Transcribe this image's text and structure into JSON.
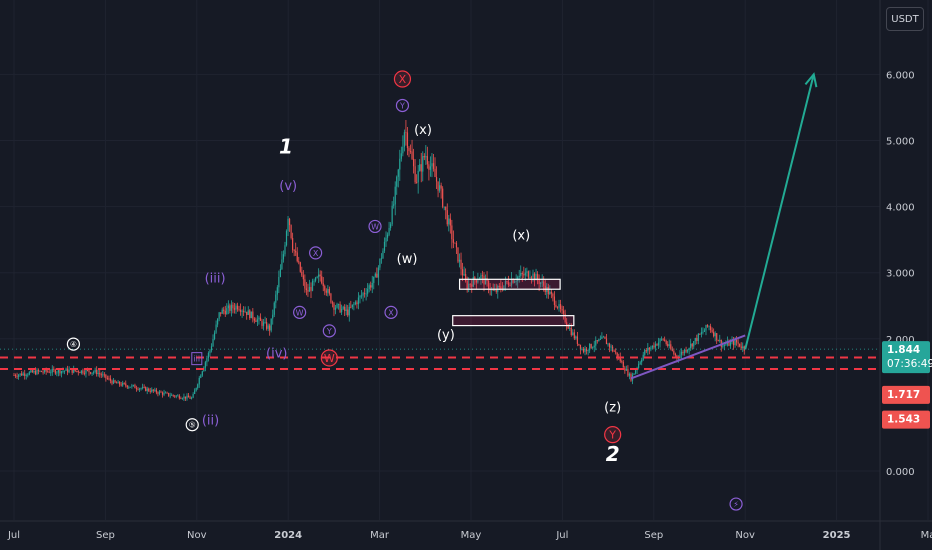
{
  "currency_label": "USDT",
  "colors": {
    "background": "#161a25",
    "up": "#26a69a",
    "down": "#ef5350",
    "support_lines": "#f23645",
    "trendline": "#7e57c2",
    "projection": "#22ab94",
    "wave_white": "#ffffff",
    "wave_purple": "#8c5fd6",
    "wave_red": "#f23645"
  },
  "chart_data": {
    "type": "candlestick",
    "pair_currency": "USDT",
    "y_ticks": [
      "6.000",
      "5.000",
      "4.000",
      "3.000",
      "2.000",
      "0.000"
    ],
    "y_tick_values": [
      6,
      5,
      4,
      3,
      2,
      0
    ],
    "x_tick_labels": [
      "Jul",
      "Sep",
      "Nov",
      "2024",
      "Mar",
      "May",
      "Jul",
      "Sep",
      "Nov",
      "2025",
      "Ma"
    ],
    "x_tick_months": [
      0,
      2,
      4,
      6,
      8,
      10,
      12,
      14,
      16,
      18,
      20
    ],
    "price_path": [
      [
        0,
        1.45
      ],
      [
        0.5,
        1.5
      ],
      [
        1.2,
        1.52
      ],
      [
        1.8,
        1.5
      ],
      [
        2.2,
        1.33
      ],
      [
        2.8,
        1.25
      ],
      [
        3.4,
        1.15
      ],
      [
        3.9,
        1.1
      ],
      [
        4.1,
        1.5
      ],
      [
        4.3,
        1.85
      ],
      [
        4.5,
        2.4
      ],
      [
        4.9,
        2.5
      ],
      [
        5.3,
        2.3
      ],
      [
        5.6,
        2.15
      ],
      [
        5.9,
        3.3
      ],
      [
        6.0,
        3.9
      ],
      [
        6.1,
        3.4
      ],
      [
        6.4,
        2.7
      ],
      [
        6.7,
        2.95
      ],
      [
        7.0,
        2.5
      ],
      [
        7.3,
        2.4
      ],
      [
        7.6,
        2.65
      ],
      [
        7.9,
        2.9
      ],
      [
        8.1,
        3.4
      ],
      [
        8.3,
        4.0
      ],
      [
        8.55,
        5.2
      ],
      [
        8.8,
        4.4
      ],
      [
        9.0,
        4.8
      ],
      [
        9.3,
        4.3
      ],
      [
        9.6,
        3.5
      ],
      [
        9.9,
        2.8
      ],
      [
        10.2,
        2.95
      ],
      [
        10.5,
        2.7
      ],
      [
        10.9,
        2.9
      ],
      [
        11.3,
        3.0
      ],
      [
        11.6,
        2.8
      ],
      [
        11.9,
        2.5
      ],
      [
        12.2,
        2.1
      ],
      [
        12.45,
        1.82
      ],
      [
        12.9,
        2.0
      ],
      [
        13.2,
        1.75
      ],
      [
        13.5,
        1.4
      ],
      [
        13.8,
        1.8
      ],
      [
        14.2,
        2.0
      ],
      [
        14.5,
        1.72
      ],
      [
        14.8,
        1.9
      ],
      [
        15.2,
        2.2
      ],
      [
        15.5,
        1.9
      ],
      [
        15.8,
        1.95
      ],
      [
        16.0,
        1.84
      ]
    ],
    "current_price": "1.844",
    "countdown": "07:36:49",
    "support_price_1": "1.717",
    "support_price_2": "1.543",
    "support_values": [
      1.717,
      1.543
    ],
    "current_value": 1.844,
    "projection": {
      "start": [
        16.0,
        1.84
      ],
      "end": [
        17.5,
        6.0
      ]
    },
    "trendline": {
      "start": [
        13.5,
        1.4
      ],
      "end": [
        16.0,
        2.05
      ]
    },
    "boxes": [
      {
        "x0": 9.75,
        "x1": 11.95,
        "y0": 2.75,
        "y1": 2.9
      },
      {
        "x0": 9.6,
        "x1": 12.25,
        "y0": 2.2,
        "y1": 2.35
      }
    ],
    "wave_labels": [
      {
        "text": "④",
        "x": 1.3,
        "y": 1.92,
        "color": "white",
        "style": "circle"
      },
      {
        "text": "⑤",
        "x": 3.9,
        "y": 0.7,
        "color": "white",
        "style": "circle"
      },
      {
        "text": "(ii)",
        "x": 4.3,
        "y": 0.7,
        "color": "purple",
        "style": "plain"
      },
      {
        "text": "iii",
        "x": 4.0,
        "y": 1.7,
        "color": "purple",
        "style": "box"
      },
      {
        "text": "(iii)",
        "x": 4.4,
        "y": 2.85,
        "color": "purple",
        "style": "plain"
      },
      {
        "text": "(iv)",
        "x": 5.75,
        "y": 1.72,
        "color": "purple",
        "style": "plain"
      },
      {
        "text": "(v)",
        "x": 6.0,
        "y": 4.25,
        "color": "purple",
        "style": "plain"
      },
      {
        "text": "1",
        "x": 5.95,
        "y": 4.8,
        "color": "white",
        "style": "big-italic"
      },
      {
        "text": "W",
        "x": 6.9,
        "y": 1.71,
        "color": "red",
        "style": "circle"
      },
      {
        "text": "W",
        "x": 6.25,
        "y": 2.4,
        "color": "purple",
        "style": "circle"
      },
      {
        "text": "X",
        "x": 6.6,
        "y": 3.3,
        "color": "purple",
        "style": "circle"
      },
      {
        "text": "Y",
        "x": 6.9,
        "y": 2.12,
        "color": "purple",
        "style": "circle"
      },
      {
        "text": "W",
        "x": 7.9,
        "y": 3.7,
        "color": "purple",
        "style": "circle"
      },
      {
        "text": "X",
        "x": 8.25,
        "y": 2.4,
        "color": "purple",
        "style": "circle"
      },
      {
        "text": "(w)",
        "x": 8.6,
        "y": 3.15,
        "color": "white",
        "style": "plain"
      },
      {
        "text": "Y",
        "x": 8.5,
        "y": 5.53,
        "color": "purple",
        "style": "circle"
      },
      {
        "text": "X",
        "x": 8.5,
        "y": 5.93,
        "color": "red",
        "style": "circle"
      },
      {
        "text": "(x)",
        "x": 8.95,
        "y": 5.1,
        "color": "white",
        "style": "plain"
      },
      {
        "text": "(y)",
        "x": 9.45,
        "y": 2.0,
        "color": "white",
        "style": "plain"
      },
      {
        "text": "(x)",
        "x": 11.1,
        "y": 3.5,
        "color": "white",
        "style": "plain"
      },
      {
        "text": "(z)",
        "x": 13.1,
        "y": 0.9,
        "color": "white",
        "style": "plain"
      },
      {
        "text": "Y",
        "x": 13.1,
        "y": 0.55,
        "color": "red",
        "style": "circle"
      },
      {
        "text": "2",
        "x": 13.1,
        "y": 0.15,
        "color": "white",
        "style": "big-italic"
      },
      {
        "text": "⚡",
        "x": 15.8,
        "y": -0.5,
        "color": "purple",
        "style": "circle"
      }
    ]
  }
}
